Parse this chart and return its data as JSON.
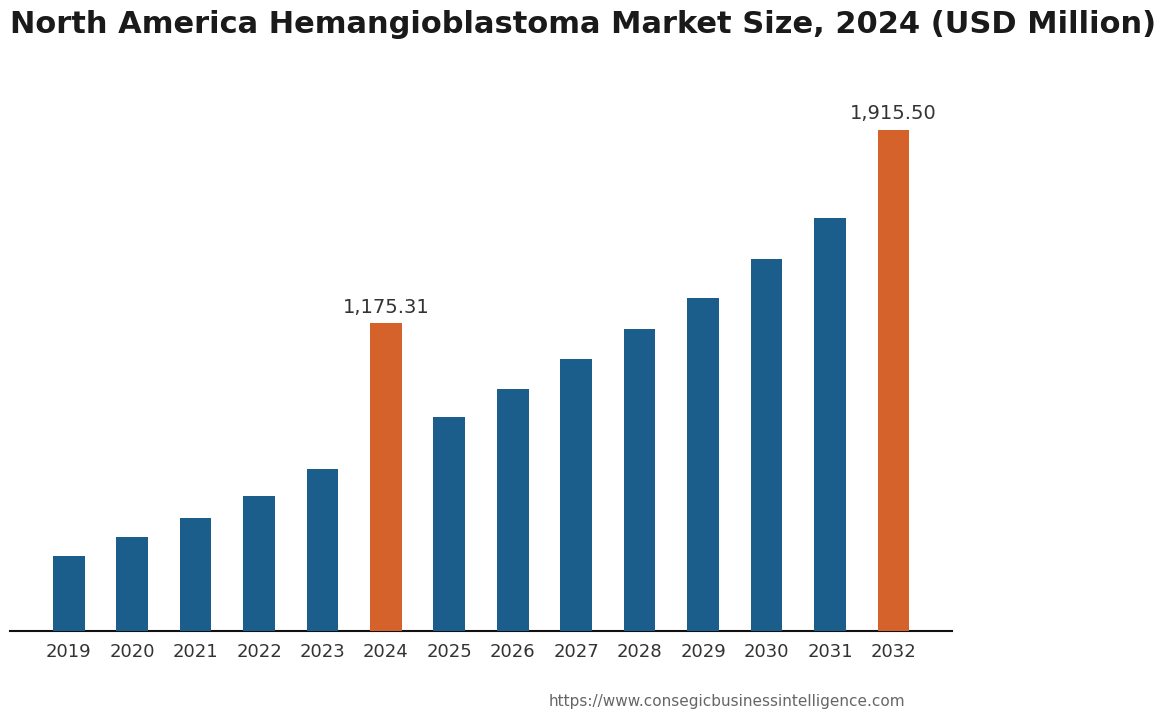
{
  "title": "North America Hemangioblastoma Market Size, 2024 (USD Million)",
  "years": [
    2019,
    2020,
    2021,
    2022,
    2023,
    2024,
    2025,
    2026,
    2027,
    2028,
    2029,
    2030,
    2031,
    2032
  ],
  "values": [
    287,
    358,
    432,
    518,
    620,
    1175.31,
    819,
    925,
    1040,
    1155,
    1273,
    1420,
    1580,
    1915.5
  ],
  "bar_colors": [
    "#1b5e8c",
    "#1b5e8c",
    "#1b5e8c",
    "#1b5e8c",
    "#1b5e8c",
    "#d4622a",
    "#1b5e8c",
    "#1b5e8c",
    "#1b5e8c",
    "#1b5e8c",
    "#1b5e8c",
    "#1b5e8c",
    "#1b5e8c",
    "#d4622a"
  ],
  "labeled_indices": [
    5,
    13
  ],
  "labeled_values": [
    "1,175.31",
    "1,915.50"
  ],
  "background_color": "#ffffff",
  "title_fontsize": 22,
  "tick_fontsize": 13,
  "label_fontsize": 14,
  "website": "https://www.consegicbusinessintelligence.com",
  "ylim": [
    0,
    2200
  ],
  "bar_width": 0.5
}
